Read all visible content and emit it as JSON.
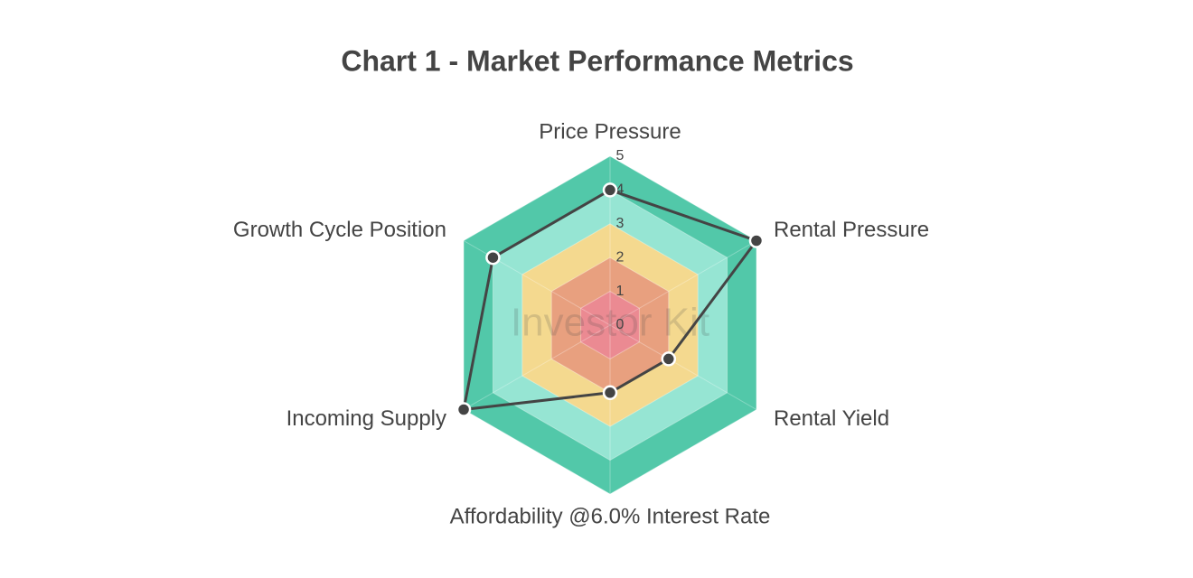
{
  "chart_data": {
    "type": "radar",
    "title": "Chart 1 - Market Performance Metrics",
    "watermark": "Investor Kit",
    "categories": [
      "Price Pressure",
      "Rental Pressure",
      "Rental Yield",
      "Affordability @6.0% Interest Rate",
      "Incoming Supply",
      "Growth Cycle Position"
    ],
    "values": [
      4,
      5,
      2,
      2,
      5,
      4
    ],
    "color": "#444444",
    "rlim": [
      0,
      5
    ],
    "rticks": [
      0,
      1,
      2,
      3,
      4,
      5
    ],
    "band_colors": [
      "#eb8a92",
      "#e8a07f",
      "#f4d98f",
      "#96e5d3",
      "#52c8a9"
    ]
  }
}
